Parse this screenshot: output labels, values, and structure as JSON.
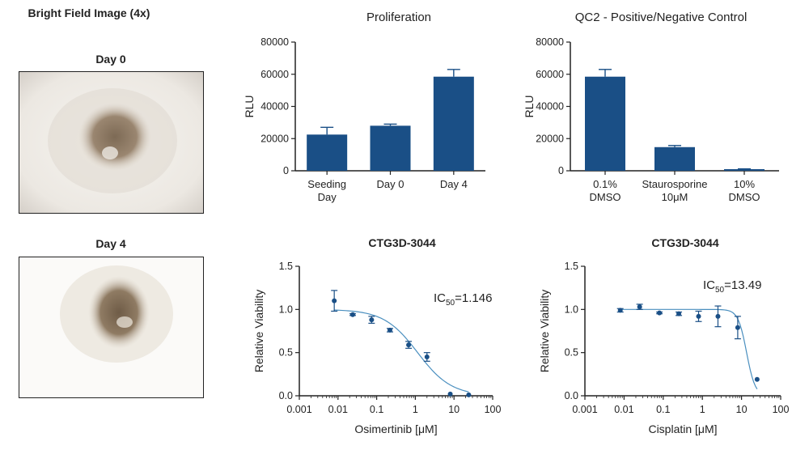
{
  "left_panel": {
    "title": "Bright Field Image (4x)",
    "day0_label": "Day 0",
    "day4_label": "Day 4"
  },
  "colors": {
    "bar": "#1a4f86",
    "point": "#1a4f86",
    "curve": "#4a8fbf"
  },
  "chart_data": [
    {
      "type": "bar",
      "title": "Proliferation",
      "ylabel": "RLU",
      "xlabel": "",
      "categories": [
        [
          "Seeding",
          "Day"
        ],
        [
          "Day 0"
        ],
        [
          "Day 4"
        ]
      ],
      "values": [
        22500,
        28000,
        58500
      ],
      "errors": [
        4500,
        1000,
        4500
      ],
      "ylim": [
        0,
        80000
      ],
      "yticks": [
        0,
        20000,
        40000,
        60000,
        80000
      ]
    },
    {
      "type": "bar",
      "title": "QC2 - Positive/Negative Control",
      "ylabel": "RLU",
      "xlabel": "",
      "categories": [
        [
          "0.1%",
          "DMSO"
        ],
        [
          "Staurosporine",
          "10μM"
        ],
        [
          "10%",
          "DMSO"
        ]
      ],
      "values": [
        58500,
        14700,
        1000
      ],
      "errors": [
        4500,
        1000,
        200
      ],
      "ylim": [
        0,
        80000
      ],
      "yticks": [
        0,
        20000,
        40000,
        60000,
        80000
      ]
    },
    {
      "type": "scatter",
      "title": "CTG3D-3044",
      "xlabel": "Osimertinib [μM]",
      "ylabel": "Relative Viability",
      "xscale": "log",
      "xlim": [
        0.001,
        100
      ],
      "xticks": [
        "0.001",
        "0.01",
        "0.1",
        "1",
        "10",
        "100"
      ],
      "ylim": [
        0,
        1.5
      ],
      "yticks": [
        "0.0",
        "0.5",
        "1.0",
        "1.5"
      ],
      "x": [
        0.008,
        0.024,
        0.074,
        0.22,
        0.67,
        2.0,
        8.0,
        24.0
      ],
      "y": [
        1.1,
        0.94,
        0.88,
        0.76,
        0.59,
        0.45,
        0.02,
        0.01
      ],
      "errors": [
        0.12,
        0.01,
        0.04,
        0.02,
        0.04,
        0.05,
        0.0,
        0.0
      ],
      "fit": {
        "top": 1.0,
        "bottom": 0.0,
        "ic50": 1.146,
        "hill": 1.0
      },
      "annotation": {
        "prefix": "IC",
        "sub": "50",
        "suffix": "=1.146"
      }
    },
    {
      "type": "scatter",
      "title": "CTG3D-3044",
      "xlabel": "Cisplatin [μM]",
      "ylabel": "Relative Viability",
      "xscale": "log",
      "xlim": [
        0.001,
        100
      ],
      "xticks": [
        "0.001",
        "0.01",
        "0.1",
        "1",
        "10",
        "100"
      ],
      "ylim": [
        0,
        1.5
      ],
      "yticks": [
        "0.0",
        "0.5",
        "1.0",
        "1.5"
      ],
      "x": [
        0.008,
        0.025,
        0.08,
        0.25,
        0.8,
        2.5,
        8.0,
        25.0
      ],
      "y": [
        0.99,
        1.03,
        0.96,
        0.95,
        0.92,
        0.92,
        0.79,
        0.19
      ],
      "errors": [
        0.02,
        0.03,
        0.01,
        0.02,
        0.06,
        0.12,
        0.13,
        0.0
      ],
      "fit": {
        "top": 1.0,
        "bottom": 0.0,
        "ic50": 13.49,
        "hill": 4.0
      },
      "annotation": {
        "prefix": "IC",
        "sub": "50",
        "suffix": "=13.49"
      }
    }
  ]
}
